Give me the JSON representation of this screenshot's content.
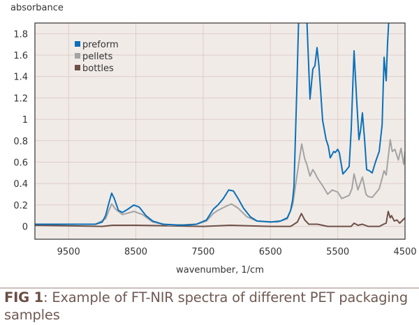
{
  "chart_data": {
    "type": "line",
    "ylabel": "absorbance",
    "xlabel": "wavenumber, 1/cm",
    "xlim": [
      10000,
      4500
    ],
    "x_reversed": true,
    "ylim": [
      -0.12,
      1.9
    ],
    "grid": true,
    "legend_placement": "top-left",
    "xticks": [
      9500,
      8500,
      7500,
      6500,
      5500,
      4500
    ],
    "xtick_labels": [
      "9500",
      "8500",
      "7500",
      "6500",
      "5500",
      "4500"
    ],
    "yticks": [
      0,
      0.2,
      0.4,
      0.6,
      0.8,
      1,
      1.2,
      1.4,
      1.6,
      1.8
    ],
    "ytick_labels": [
      "0",
      "0.2",
      "0.4",
      "0.6",
      "0.8",
      "1",
      "1.2",
      "1.4",
      "1.6",
      "1.8"
    ],
    "series": [
      {
        "name": "preform",
        "color": "#0a70b8",
        "points": [
          [
            10000,
            0.02
          ],
          [
            9500,
            0.02
          ],
          [
            9100,
            0.02
          ],
          [
            9000,
            0.04
          ],
          [
            8950,
            0.1
          ],
          [
            8900,
            0.22
          ],
          [
            8860,
            0.31
          ],
          [
            8820,
            0.26
          ],
          [
            8760,
            0.15
          ],
          [
            8700,
            0.13
          ],
          [
            8620,
            0.16
          ],
          [
            8530,
            0.2
          ],
          [
            8450,
            0.18
          ],
          [
            8350,
            0.1
          ],
          [
            8250,
            0.05
          ],
          [
            8100,
            0.02
          ],
          [
            7800,
            0.01
          ],
          [
            7600,
            0.02
          ],
          [
            7450,
            0.06
          ],
          [
            7350,
            0.16
          ],
          [
            7280,
            0.2
          ],
          [
            7200,
            0.26
          ],
          [
            7120,
            0.34
          ],
          [
            7050,
            0.33
          ],
          [
            6980,
            0.26
          ],
          [
            6900,
            0.17
          ],
          [
            6800,
            0.09
          ],
          [
            6700,
            0.05
          ],
          [
            6500,
            0.04
          ],
          [
            6350,
            0.05
          ],
          [
            6250,
            0.08
          ],
          [
            6200,
            0.15
          ],
          [
            6170,
            0.25
          ],
          [
            6150,
            0.38
          ],
          [
            6110,
            1.25
          ],
          [
            6080,
            1.95
          ],
          [
            5960,
            1.95
          ],
          [
            5912,
            1.19
          ],
          [
            5870,
            1.47
          ],
          [
            5840,
            1.5
          ],
          [
            5808,
            1.67
          ],
          [
            5780,
            1.5
          ],
          [
            5725,
            0.99
          ],
          [
            5673,
            0.81
          ],
          [
            5640,
            0.75
          ],
          [
            5611,
            0.64
          ],
          [
            5560,
            0.7
          ],
          [
            5538,
            0.69
          ],
          [
            5500,
            0.72
          ],
          [
            5476,
            0.69
          ],
          [
            5424,
            0.49
          ],
          [
            5380,
            0.52
          ],
          [
            5330,
            0.56
          ],
          [
            5300,
            0.9
          ],
          [
            5258,
            1.64
          ],
          [
            5220,
            1.2
          ],
          [
            5185,
            0.81
          ],
          [
            5160,
            0.9
          ],
          [
            5133,
            1.06
          ],
          [
            5100,
            0.8
          ],
          [
            5071,
            0.53
          ],
          [
            5030,
            0.52
          ],
          [
            4988,
            0.5
          ],
          [
            4940,
            0.6
          ],
          [
            4884,
            0.7
          ],
          [
            4840,
            0.95
          ],
          [
            4811,
            1.58
          ],
          [
            4780,
            1.36
          ],
          [
            4760,
            1.7
          ],
          [
            4740,
            1.95
          ]
        ]
      },
      {
        "name": "pellets",
        "color": "#a3a3a3",
        "points": [
          [
            10000,
            0.02
          ],
          [
            9100,
            0.02
          ],
          [
            8950,
            0.07
          ],
          [
            8900,
            0.15
          ],
          [
            8860,
            0.21
          ],
          [
            8800,
            0.16
          ],
          [
            8700,
            0.11
          ],
          [
            8530,
            0.14
          ],
          [
            8400,
            0.11
          ],
          [
            8250,
            0.04
          ],
          [
            8000,
            0.01
          ],
          [
            7600,
            0.02
          ],
          [
            7450,
            0.05
          ],
          [
            7350,
            0.12
          ],
          [
            7280,
            0.15
          ],
          [
            7150,
            0.19
          ],
          [
            7080,
            0.21
          ],
          [
            6980,
            0.17
          ],
          [
            6850,
            0.09
          ],
          [
            6700,
            0.05
          ],
          [
            6400,
            0.04
          ],
          [
            6250,
            0.07
          ],
          [
            6170,
            0.2
          ],
          [
            6100,
            0.5
          ],
          [
            6036,
            0.77
          ],
          [
            5990,
            0.63
          ],
          [
            5960,
            0.58
          ],
          [
            5912,
            0.47
          ],
          [
            5870,
            0.53
          ],
          [
            5840,
            0.5
          ],
          [
            5800,
            0.45
          ],
          [
            5725,
            0.38
          ],
          [
            5650,
            0.3
          ],
          [
            5580,
            0.34
          ],
          [
            5500,
            0.32
          ],
          [
            5440,
            0.26
          ],
          [
            5330,
            0.29
          ],
          [
            5290,
            0.35
          ],
          [
            5258,
            0.49
          ],
          [
            5200,
            0.34
          ],
          [
            5133,
            0.46
          ],
          [
            5080,
            0.3
          ],
          [
            5050,
            0.28
          ],
          [
            4988,
            0.27
          ],
          [
            4884,
            0.35
          ],
          [
            4840,
            0.45
          ],
          [
            4811,
            0.52
          ],
          [
            4780,
            0.48
          ],
          [
            4720,
            0.81
          ],
          [
            4690,
            0.7
          ],
          [
            4650,
            0.72
          ],
          [
            4600,
            0.62
          ],
          [
            4560,
            0.73
          ],
          [
            4520,
            0.58
          ],
          [
            4500,
            0.7
          ]
        ]
      },
      {
        "name": "bottles",
        "color": "#6e5047",
        "points": [
          [
            10000,
            0.01
          ],
          [
            9000,
            0.0
          ],
          [
            8850,
            0.01
          ],
          [
            8500,
            0.01
          ],
          [
            7500,
            0.0
          ],
          [
            7100,
            0.01
          ],
          [
            6500,
            0.0
          ],
          [
            6200,
            0.0
          ],
          [
            6100,
            0.04
          ],
          [
            6040,
            0.12
          ],
          [
            5990,
            0.06
          ],
          [
            5930,
            0.02
          ],
          [
            5800,
            0.02
          ],
          [
            5650,
            0.0
          ],
          [
            5300,
            0.0
          ],
          [
            5258,
            0.03
          ],
          [
            5200,
            0.01
          ],
          [
            5133,
            0.02
          ],
          [
            5050,
            0.0
          ],
          [
            4880,
            0.0
          ],
          [
            4820,
            0.02
          ],
          [
            4780,
            0.03
          ],
          [
            4750,
            0.14
          ],
          [
            4720,
            0.08
          ],
          [
            4700,
            0.1
          ],
          [
            4660,
            0.05
          ],
          [
            4620,
            0.06
          ],
          [
            4580,
            0.03
          ],
          [
            4500,
            0.08
          ]
        ]
      }
    ]
  },
  "caption": {
    "label": "FIG 1",
    "text": ": Example of FT-NIR spectra of different PET packaging samples"
  },
  "colors": {
    "plot_bg": "#f1ebe8",
    "grid": "#dccdc8",
    "caption": "#6e5a52"
  }
}
